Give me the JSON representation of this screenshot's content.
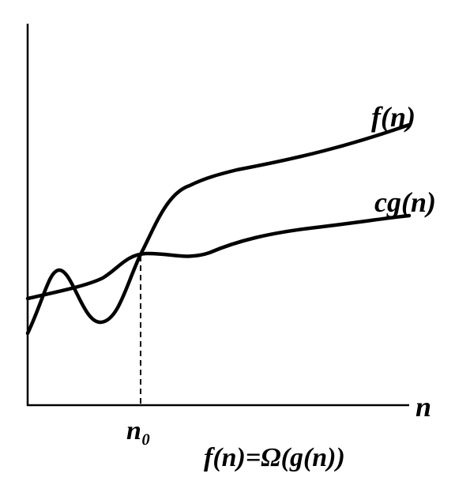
{
  "curves": [
    {
      "label": "f(n)"
    },
    {
      "label": "cg(n)"
    }
  ],
  "axis": {
    "x_label": "n",
    "threshold_label": "n₀"
  },
  "caption": "f(n)=Ω(g(n))"
}
